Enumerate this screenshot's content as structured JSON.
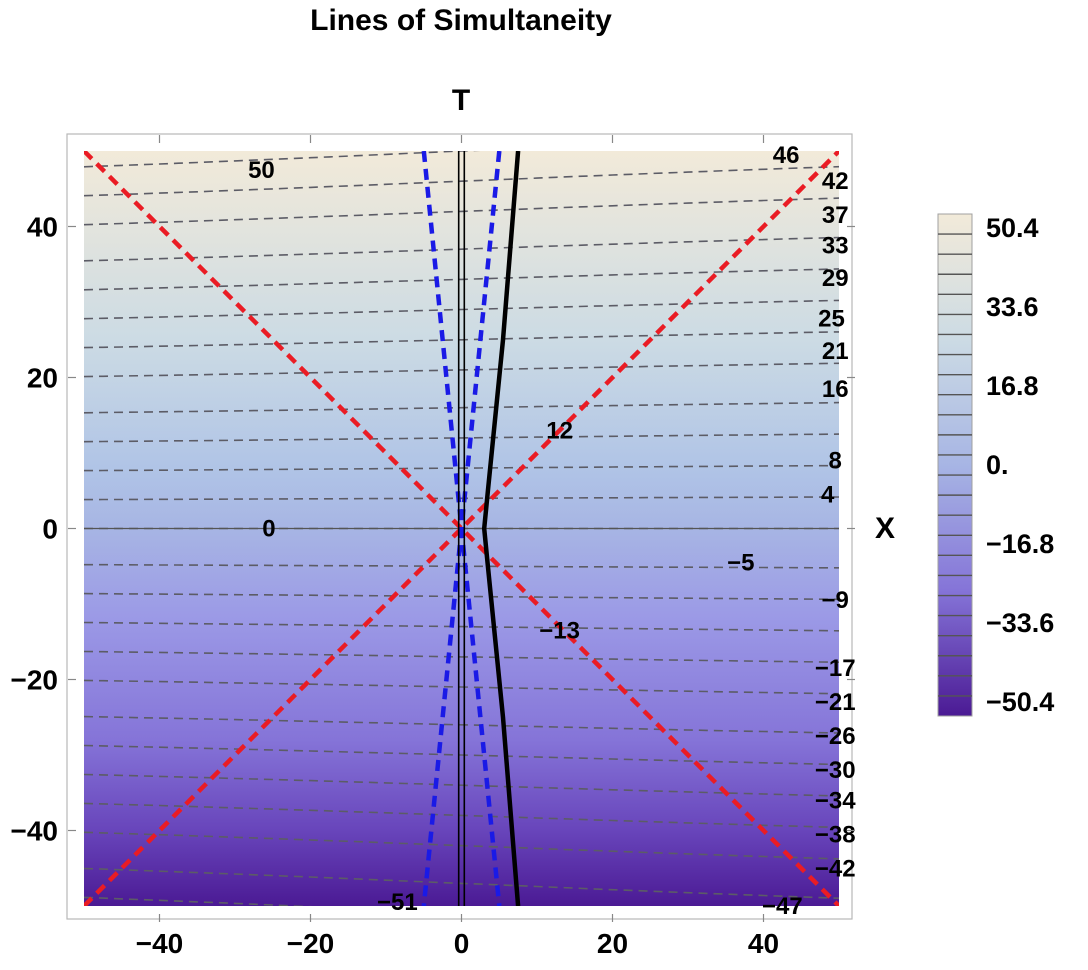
{
  "chart_data": {
    "type": "contour",
    "title": "Lines of Simultaneity",
    "xlabel": "X",
    "ylabel": "T",
    "xlim": [
      -50,
      50
    ],
    "ylim": [
      -50,
      50
    ],
    "xticks": [
      -40,
      -20,
      0,
      20,
      40
    ],
    "yticks": [
      -40,
      -20,
      0,
      20,
      40
    ],
    "colormap": {
      "low": "#4b1a94",
      "mid": "#a7b5e4",
      "high": "#f2ead9"
    },
    "contour_values": [
      -51,
      -47,
      -42,
      -38,
      -34,
      -30,
      -26,
      -21,
      -17,
      -13,
      -9,
      -5,
      0,
      4,
      8,
      12,
      16,
      21,
      25,
      29,
      33,
      37,
      42,
      46,
      50
    ],
    "contour_labels": [
      {
        "text": "50",
        "x": -26.5,
        "y": 47.5
      },
      {
        "text": "46",
        "x": 43,
        "y": 49.5
      },
      {
        "text": "42",
        "x": 49.5,
        "y": 46
      },
      {
        "text": "37",
        "x": 49.5,
        "y": 41.5
      },
      {
        "text": "33",
        "x": 49.5,
        "y": 37.5
      },
      {
        "text": "29",
        "x": 49.5,
        "y": 33.2
      },
      {
        "text": "25",
        "x": 49,
        "y": 27.8
      },
      {
        "text": "21",
        "x": 49.5,
        "y": 23.5
      },
      {
        "text": "16",
        "x": 49.5,
        "y": 18.5
      },
      {
        "text": "12",
        "x": 13,
        "y": 13
      },
      {
        "text": "8",
        "x": 49.5,
        "y": 9
      },
      {
        "text": "4",
        "x": 48.5,
        "y": 4.5
      },
      {
        "text": "0",
        "x": -25.5,
        "y": 0
      },
      {
        "text": "−5",
        "x": 37,
        "y": -4.5
      },
      {
        "text": "−9",
        "x": 49.5,
        "y": -9.5
      },
      {
        "text": "−13",
        "x": 13,
        "y": -13.5
      },
      {
        "text": "−17",
        "x": 49.5,
        "y": -18.5
      },
      {
        "text": "−21",
        "x": 49.5,
        "y": -23
      },
      {
        "text": "−26",
        "x": 49.5,
        "y": -27.5
      },
      {
        "text": "−30",
        "x": 49.5,
        "y": -32
      },
      {
        "text": "−34",
        "x": 49.5,
        "y": -36
      },
      {
        "text": "−38",
        "x": 49.5,
        "y": -40.5
      },
      {
        "text": "−42",
        "x": 49.5,
        "y": -45
      },
      {
        "text": "−47",
        "x": 42.5,
        "y": -50
      },
      {
        "text": "−51",
        "x": -8.5,
        "y": -49.5
      }
    ],
    "lines": [
      {
        "kind": "light-cone",
        "style": "red-dashed",
        "points": [
          [
            -50,
            50
          ],
          [
            50,
            -50
          ]
        ]
      },
      {
        "kind": "light-cone",
        "style": "red-dashed",
        "points": [
          [
            -50,
            -50
          ],
          [
            50,
            50
          ]
        ]
      },
      {
        "kind": "worldline",
        "style": "blue-dashed",
        "points": [
          [
            -5,
            50
          ],
          [
            0,
            0
          ],
          [
            -5,
            -50
          ]
        ]
      },
      {
        "kind": "worldline",
        "style": "blue-dashed",
        "points": [
          [
            5,
            50
          ],
          [
            0,
            0
          ],
          [
            5,
            -50
          ]
        ]
      },
      {
        "kind": "worldline",
        "style": "black-solid",
        "points": [
          [
            7.5,
            50
          ],
          [
            5.5,
            25
          ],
          [
            3.5,
            5
          ],
          [
            3,
            0
          ],
          [
            3.5,
            -5
          ],
          [
            5.5,
            -25
          ],
          [
            7.5,
            -50
          ]
        ]
      },
      {
        "kind": "worldline",
        "style": "black-double",
        "points": [
          [
            0,
            -50
          ],
          [
            0,
            50
          ]
        ]
      }
    ],
    "legend": {
      "type": "colorbar",
      "placement": "right",
      "range": [
        -50.4,
        50.4
      ],
      "tick_labels": [
        "50.4",
        "33.6",
        "16.8",
        "0.",
        "−16.8",
        "−33.6",
        "−50.4"
      ]
    },
    "grid": false
  }
}
